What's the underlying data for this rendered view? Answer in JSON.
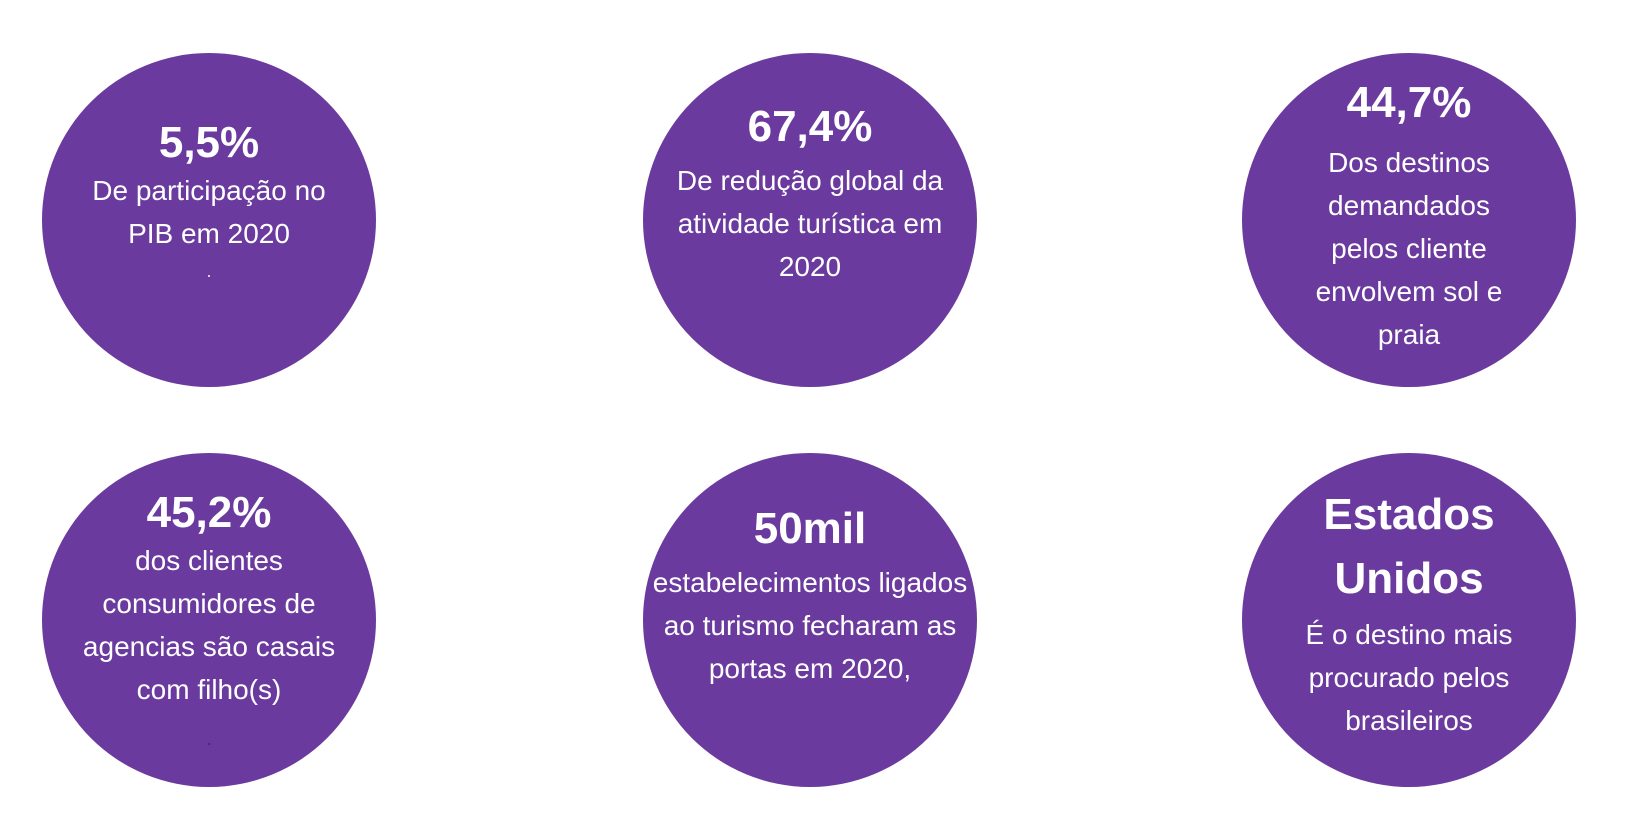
{
  "colors": {
    "circle_fill": "#6a3a9e",
    "text": "#ffffff",
    "background": "#ffffff"
  },
  "stats": [
    {
      "value": "5,5%",
      "description": "De participação no PIB em 2020",
      "mark": "."
    },
    {
      "value": "67,4%",
      "description": "De redução global da atividade turística em 2020"
    },
    {
      "value": "44,7%",
      "description": "Dos destinos demandados pelos cliente envolvem sol e praia"
    },
    {
      "value": "45,2%",
      "description": "dos clientes consumidores de agencias são casais com filho(s)",
      "mark": "."
    },
    {
      "value": "50mil",
      "description": "estabelecimentos ligados ao turismo fecharam as portas em 2020,"
    },
    {
      "value": "Estados Unidos",
      "description": "É o destino mais procurado pelos brasileiros"
    }
  ]
}
